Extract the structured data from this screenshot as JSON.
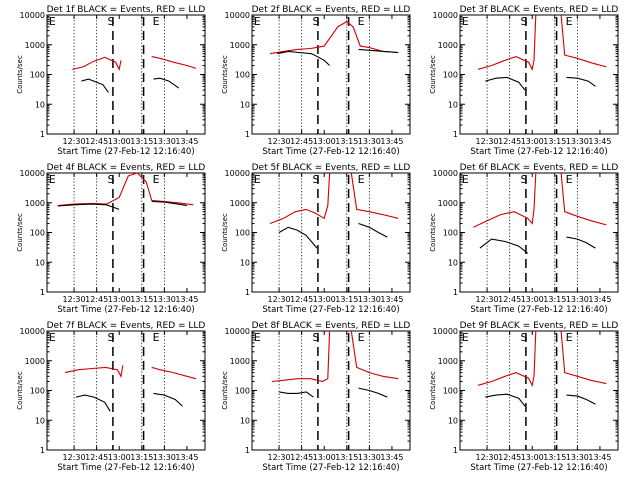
{
  "chart_data": [
    {
      "type": "line",
      "title": "Det 1f BLACK = Events, RED = LLD",
      "xlabel": "Start Time (27-Feb-12 12:16:40)",
      "ylabel": "Counts/sec",
      "x_ticks": [
        "12:30",
        "12:45",
        "13:00",
        "13:15",
        "13:30",
        "13:45"
      ],
      "y_ticks": [
        "1",
        "10",
        "100",
        "1000",
        "10000"
      ],
      "yscale": "log",
      "ylim": [
        1,
        10000
      ],
      "markers": [
        "E",
        "S",
        "E"
      ],
      "series": [
        {
          "color": "#d00000",
          "x": [
            12.48,
            12.6,
            12.72,
            12.84,
            12.96,
            13.0,
            13.02
          ],
          "y": [
            150,
            180,
            280,
            380,
            260,
            150,
            300
          ],
          "x2": [
            13.36,
            13.45,
            13.6,
            13.75,
            13.85
          ],
          "y2": [
            400,
            350,
            260,
            200,
            160
          ]
        },
        {
          "color": "#000000",
          "x": [
            12.58,
            12.66,
            12.75,
            12.82,
            12.88
          ],
          "y": [
            60,
            70,
            55,
            45,
            25
          ],
          "x2": [
            13.38,
            13.45,
            13.55,
            13.66
          ],
          "y2": [
            70,
            75,
            60,
            35
          ]
        }
      ]
    },
    {
      "type": "line",
      "title": "Det 2f BLACK = Events, RED = LLD",
      "xlabel": "Start Time (27-Feb-12 12:16:40)",
      "ylabel": "Counts/sec",
      "x_ticks": [
        "12:30",
        "12:45",
        "13:00",
        "13:15",
        "13:30",
        "13:45"
      ],
      "y_ticks": [
        "1",
        "10",
        "100",
        "1000",
        "10000"
      ],
      "yscale": "log",
      "ylim": [
        1,
        10000
      ],
      "markers": [
        "E",
        "S",
        "E"
      ],
      "series": [
        {
          "color": "#d00000",
          "x": [
            12.4,
            12.55,
            12.7,
            12.85,
            13.0,
            13.15,
            13.25,
            13.32,
            13.4,
            13.5,
            13.65,
            13.82
          ],
          "y": [
            500,
            600,
            700,
            750,
            900,
            4000,
            6000,
            4000,
            900,
            800,
            600,
            550
          ],
          "x2": [],
          "y2": []
        },
        {
          "color": "#000000",
          "x": [
            12.48,
            12.6,
            12.72,
            12.86,
            13.0,
            13.06
          ],
          "y": [
            500,
            600,
            550,
            500,
            300,
            200
          ],
          "x2": [
            13.38,
            13.5,
            13.66,
            13.82
          ],
          "y2": [
            700,
            650,
            600,
            550
          ]
        }
      ]
    },
    {
      "type": "line",
      "title": "Det 3f BLACK = Events, RED = LLD",
      "xlabel": "Start Time (27-Feb-12 12:16:40)",
      "ylabel": "Counts/sec",
      "x_ticks": [
        "12:30",
        "12:45",
        "13:00",
        "13:15",
        "13:30",
        "13:45"
      ],
      "y_ticks": [
        "1",
        "10",
        "100",
        "1000",
        "10000"
      ],
      "yscale": "log",
      "ylim": [
        1,
        10000
      ],
      "markers": [
        "E",
        "S",
        "E"
      ],
      "series": [
        {
          "color": "#d00000",
          "x": [
            12.4,
            12.55,
            12.7,
            12.82,
            12.96,
            13.0,
            13.02,
            13.04
          ],
          "y": [
            150,
            200,
            300,
            400,
            260,
            150,
            300,
            10000
          ],
          "x2": [
            13.32,
            13.36,
            13.5,
            13.65,
            13.82
          ],
          "y2": [
            10000,
            450,
            350,
            250,
            180
          ]
        },
        {
          "color": "#000000",
          "x": [
            12.48,
            12.6,
            12.72,
            12.85,
            12.92
          ],
          "y": [
            60,
            75,
            80,
            55,
            30
          ],
          "x2": [
            13.38,
            13.5,
            13.62,
            13.7
          ],
          "y2": [
            80,
            75,
            60,
            40
          ]
        }
      ]
    },
    {
      "type": "line",
      "title": "Det 4f BLACK = Events, RED = LLD",
      "xlabel": "Start Time (27-Feb-12 12:16:40)",
      "ylabel": "Counts/sec",
      "x_ticks": [
        "12:30",
        "12:45",
        "13:00",
        "13:15",
        "13:30",
        "13:45"
      ],
      "y_ticks": [
        "1",
        "10",
        "100",
        "1000",
        "10000"
      ],
      "yscale": "log",
      "ylim": [
        1,
        10000
      ],
      "markers": [
        "E",
        "S",
        "E"
      ],
      "series": [
        {
          "color": "#d00000",
          "x": [
            12.32,
            12.5,
            12.7,
            12.86,
            13.0,
            13.1,
            13.2,
            13.3,
            13.36,
            13.5,
            13.65,
            13.82
          ],
          "y": [
            800,
            900,
            950,
            900,
            1500,
            8000,
            10000,
            5000,
            1200,
            1100,
            1000,
            850
          ],
          "x2": [],
          "y2": []
        },
        {
          "color": "#000000",
          "x": [
            12.32,
            12.5,
            12.7,
            12.86,
            13.0
          ],
          "y": [
            780,
            850,
            900,
            850,
            600
          ],
          "x2": [
            13.36,
            13.5,
            13.65,
            13.75
          ],
          "y2": [
            1100,
            1050,
            900,
            800
          ]
        }
      ]
    },
    {
      "type": "line",
      "title": "Det 5f BLACK = Events, RED = LLD",
      "xlabel": "Start Time (27-Feb-12 12:16:40)",
      "ylabel": "Counts/sec",
      "x_ticks": [
        "12:30",
        "12:45",
        "13:00",
        "13:15",
        "13:30",
        "13:45"
      ],
      "y_ticks": [
        "1",
        "10",
        "100",
        "1000",
        "10000"
      ],
      "yscale": "log",
      "ylim": [
        1,
        10000
      ],
      "markers": [
        "E",
        "S",
        "E"
      ],
      "series": [
        {
          "color": "#d00000",
          "x": [
            12.4,
            12.55,
            12.68,
            12.8,
            12.9,
            13.0,
            13.04,
            13.06
          ],
          "y": [
            200,
            300,
            500,
            600,
            450,
            300,
            800,
            10000
          ],
          "x2": [
            13.3,
            13.36,
            13.5,
            13.65,
            13.82
          ],
          "y2": [
            10000,
            600,
            500,
            400,
            300
          ]
        },
        {
          "color": "#000000",
          "x": [
            12.5,
            12.6,
            12.7,
            12.8,
            12.92
          ],
          "y": [
            100,
            150,
            120,
            80,
            30
          ],
          "x2": [
            13.38,
            13.5,
            13.6,
            13.7
          ],
          "y2": [
            200,
            150,
            100,
            70
          ]
        }
      ]
    },
    {
      "type": "line",
      "title": "Det 6f BLACK = Events, RED = LLD",
      "xlabel": "Start Time (27-Feb-12 12:16:40)",
      "ylabel": "Counts/sec",
      "x_ticks": [
        "12:30",
        "12:45",
        "13:00",
        "13:15",
        "13:30",
        "13:45"
      ],
      "y_ticks": [
        "1",
        "10",
        "100",
        "1000",
        "10000"
      ],
      "yscale": "log",
      "ylim": [
        1,
        10000
      ],
      "markers": [
        "E",
        "S",
        "E"
      ],
      "series": [
        {
          "color": "#d00000",
          "x": [
            12.35,
            12.5,
            12.65,
            12.8,
            12.95,
            13.0,
            13.02,
            13.04
          ],
          "y": [
            150,
            250,
            400,
            500,
            300,
            200,
            600,
            10000
          ],
          "x2": [
            13.32,
            13.36,
            13.5,
            13.65,
            13.82
          ],
          "y2": [
            10000,
            500,
            350,
            250,
            180
          ]
        },
        {
          "color": "#000000",
          "x": [
            12.42,
            12.55,
            12.7,
            12.85,
            12.95
          ],
          "y": [
            30,
            60,
            50,
            35,
            20
          ],
          "x2": [
            13.38,
            13.5,
            13.6,
            13.7
          ],
          "y2": [
            70,
            60,
            45,
            30
          ]
        }
      ]
    },
    {
      "type": "line",
      "title": "Det 7f BLACK = Events, RED = LLD",
      "xlabel": "Start Time (27-Feb-12 12:16:40)",
      "ylabel": "Counts/sec",
      "x_ticks": [
        "12:30",
        "12:45",
        "13:00",
        "13:15",
        "13:30",
        "13:45"
      ],
      "y_ticks": [
        "1",
        "10",
        "100",
        "1000",
        "10000"
      ],
      "yscale": "log",
      "ylim": [
        1,
        10000
      ],
      "markers": [
        "E",
        "S",
        "E"
      ],
      "series": [
        {
          "color": "#d00000",
          "x": [
            12.4,
            12.55,
            12.7,
            12.85,
            12.98,
            13.02,
            13.04
          ],
          "y": [
            400,
            500,
            550,
            600,
            500,
            300,
            700
          ],
          "x2": [
            13.36,
            13.45,
            13.6,
            13.75,
            13.85
          ],
          "y2": [
            600,
            500,
            400,
            300,
            250
          ]
        },
        {
          "color": "#000000",
          "x": [
            12.52,
            12.62,
            12.72,
            12.84,
            12.9
          ],
          "y": [
            60,
            70,
            60,
            40,
            20
          ],
          "x2": [
            13.38,
            13.5,
            13.62,
            13.7
          ],
          "y2": [
            80,
            70,
            50,
            30
          ]
        }
      ]
    },
    {
      "type": "line",
      "title": "Det 8f BLACK = Events, RED = LLD",
      "xlabel": "Start Time (27-Feb-12 12:16:40)",
      "ylabel": "Counts/sec",
      "x_ticks": [
        "12:30",
        "12:45",
        "13:00",
        "13:15",
        "13:30",
        "13:45"
      ],
      "y_ticks": [
        "1",
        "10",
        "100",
        "1000",
        "10000"
      ],
      "yscale": "log",
      "ylim": [
        1,
        10000
      ],
      "markers": [
        "E",
        "S",
        "E"
      ],
      "series": [
        {
          "color": "#d00000",
          "x": [
            12.42,
            12.55,
            12.7,
            12.85,
            12.98,
            13.04,
            13.06
          ],
          "y": [
            200,
            220,
            250,
            250,
            200,
            250,
            10000
          ],
          "x2": [
            13.3,
            13.36,
            13.5,
            13.65,
            13.82
          ],
          "y2": [
            10000,
            600,
            400,
            300,
            250
          ]
        },
        {
          "color": "#000000",
          "x": [
            12.5,
            12.6,
            12.7,
            12.8,
            12.88
          ],
          "y": [
            90,
            80,
            80,
            90,
            60
          ],
          "x2": [
            13.38,
            13.5,
            13.6,
            13.7
          ],
          "y2": [
            120,
            100,
            80,
            60
          ]
        }
      ]
    },
    {
      "type": "line",
      "title": "Det 9f BLACK = Events, RED = LLD",
      "xlabel": "Start Time (27-Feb-12 12:16:40)",
      "ylabel": "Counts/sec",
      "x_ticks": [
        "12:30",
        "12:45",
        "13:00",
        "13:15",
        "13:30",
        "13:45"
      ],
      "y_ticks": [
        "1",
        "10",
        "100",
        "1000",
        "10000"
      ],
      "yscale": "log",
      "ylim": [
        1,
        10000
      ],
      "markers": [
        "E",
        "S",
        "E"
      ],
      "series": [
        {
          "color": "#d00000",
          "x": [
            12.4,
            12.55,
            12.7,
            12.82,
            12.96,
            13.0,
            13.02,
            13.04
          ],
          "y": [
            150,
            200,
            300,
            400,
            260,
            150,
            300,
            10000
          ],
          "x2": [
            13.32,
            13.36,
            13.5,
            13.65,
            13.82
          ],
          "y2": [
            10000,
            400,
            300,
            220,
            170
          ]
        },
        {
          "color": "#000000",
          "x": [
            12.48,
            12.6,
            12.72,
            12.85,
            12.92
          ],
          "y": [
            60,
            70,
            75,
            55,
            30
          ],
          "x2": [
            13.38,
            13.5,
            13.6,
            13.7
          ],
          "y2": [
            70,
            65,
            50,
            35
          ]
        }
      ]
    }
  ]
}
